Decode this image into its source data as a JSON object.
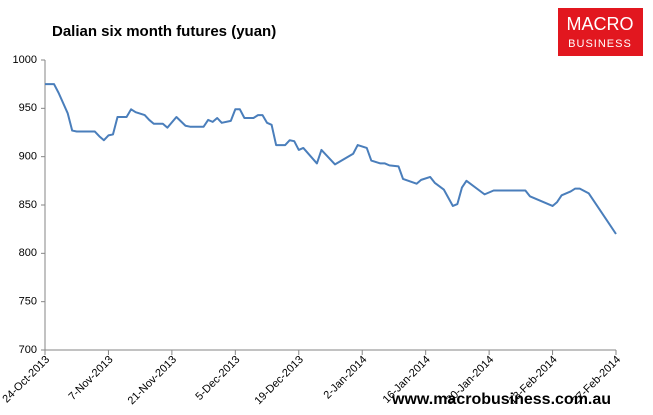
{
  "chart_data": {
    "type": "line",
    "title": "Dalian six month futures (yuan)",
    "logo": [
      "MACRO",
      "BUSINESS"
    ],
    "footer": "www.macrobusiness.com.au",
    "x": [
      "2013-10-24",
      "2013-10-26",
      "2013-10-27",
      "2013-10-29",
      "2013-10-30",
      "2013-10-31",
      "2013-11-04",
      "2013-11-05",
      "2013-11-06",
      "2013-11-07",
      "2013-11-08",
      "2013-11-09",
      "2013-11-11",
      "2013-11-12",
      "2013-11-13",
      "2013-11-15",
      "2013-11-16",
      "2013-11-17",
      "2013-11-19",
      "2013-11-20",
      "2013-11-22",
      "2013-11-24",
      "2013-11-25",
      "2013-11-28",
      "2013-11-29",
      "2013-11-30",
      "2013-12-01",
      "2013-12-02",
      "2013-12-04",
      "2013-12-05",
      "2013-12-06",
      "2013-12-07",
      "2013-12-09",
      "2013-12-10",
      "2013-12-11",
      "2013-12-12",
      "2013-12-13",
      "2013-12-14",
      "2013-12-16",
      "2013-12-17",
      "2013-12-18",
      "2013-12-19",
      "2013-12-20",
      "2013-12-23",
      "2013-12-24",
      "2013-12-27",
      "2013-12-31",
      "2014-01-01",
      "2014-01-03",
      "2014-01-04",
      "2014-01-06",
      "2014-01-07",
      "2014-01-08",
      "2014-01-10",
      "2014-01-11",
      "2014-01-14",
      "2014-01-15",
      "2014-01-17",
      "2014-01-18",
      "2014-01-20",
      "2014-01-22",
      "2014-01-23",
      "2014-01-24",
      "2014-01-25",
      "2014-01-29",
      "2014-01-31",
      "2014-02-07",
      "2014-02-08",
      "2014-02-13",
      "2014-02-14",
      "2014-02-15",
      "2014-02-17",
      "2014-02-18",
      "2014-02-19",
      "2014-02-21",
      "2014-02-22",
      "2014-02-25",
      "2014-02-27"
    ],
    "series": [
      {
        "name": "Dalian six month futures",
        "color": "#4a7ebb",
        "values": [
          975,
          975,
          966,
          945,
          927,
          926,
          926,
          921,
          917,
          922,
          923,
          941,
          941,
          949,
          946,
          943,
          938,
          934,
          934,
          930,
          941,
          932,
          931,
          931,
          938,
          936,
          940,
          935,
          937,
          949,
          949,
          940,
          940,
          943,
          943,
          935,
          933,
          912,
          912,
          917,
          916,
          907,
          909,
          893,
          907,
          892,
          903,
          912,
          909,
          896,
          893,
          893,
          891,
          890,
          877,
          872,
          876,
          879,
          873,
          866,
          849,
          851,
          868,
          875,
          861,
          865,
          865,
          859,
          849,
          853,
          860,
          864,
          867,
          867,
          862,
          855,
          834,
          820
        ]
      }
    ],
    "xlim": [
      "2013-10-24",
      "2014-02-27"
    ],
    "xticks": [
      {
        "value": "2013-10-24",
        "label": "24-Oct-2013"
      },
      {
        "value": "2013-11-07",
        "label": "7-Nov-2013"
      },
      {
        "value": "2013-11-21",
        "label": "21-Nov-2013"
      },
      {
        "value": "2013-12-05",
        "label": "5-Dec-2013"
      },
      {
        "value": "2013-12-19",
        "label": "19-Dec-2013"
      },
      {
        "value": "2014-01-02",
        "label": "2-Jan-2014"
      },
      {
        "value": "2014-01-16",
        "label": "16-Jan-2014"
      },
      {
        "value": "2014-01-30",
        "label": "30-Jan-2014"
      },
      {
        "value": "2014-02-13",
        "label": "13-Feb-2014"
      },
      {
        "value": "2014-02-27",
        "label": "27-Feb-2014"
      }
    ],
    "ylim": [
      700,
      1000
    ],
    "yticks": [
      700,
      750,
      800,
      850,
      900,
      950,
      1000
    ],
    "grid": false
  }
}
